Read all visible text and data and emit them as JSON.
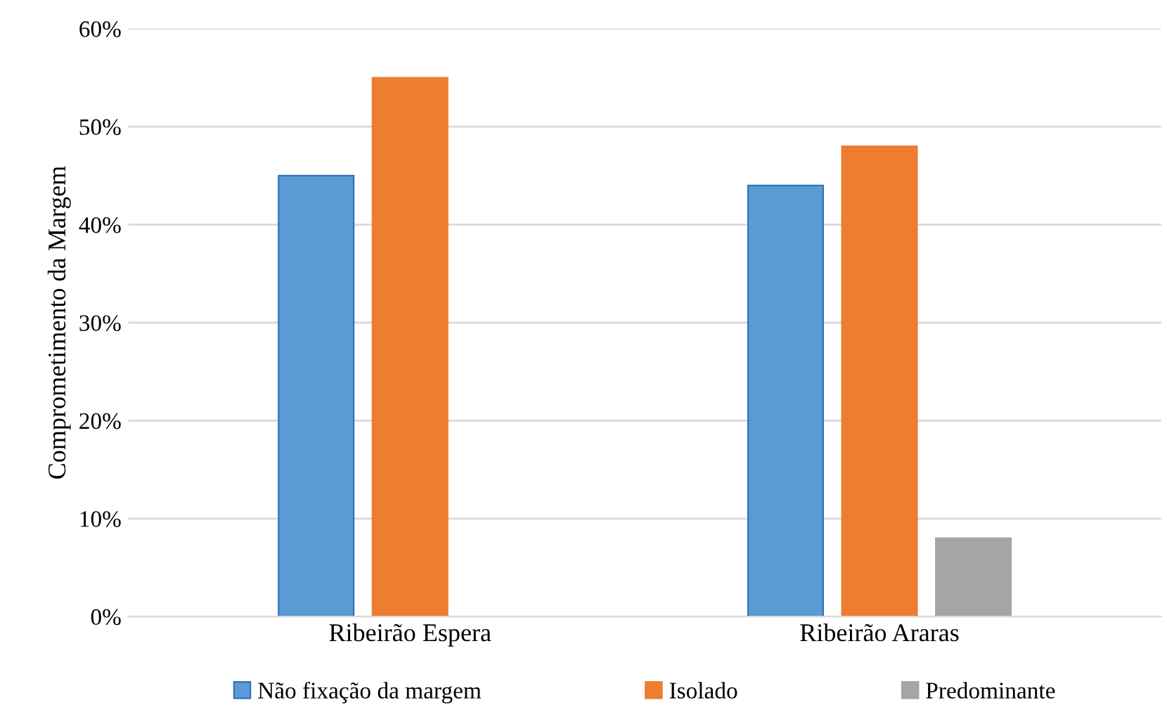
{
  "chart_data": {
    "type": "bar",
    "ylabel": "Comprometimento da Margem",
    "categories": [
      "Ribeirão Espera",
      "Ribeirão Araras"
    ],
    "series": [
      {
        "name": "Não fixação da margem",
        "color": "#5b9bd5",
        "values": [
          45,
          44
        ]
      },
      {
        "name": "Isolado",
        "color": "#ed7d31",
        "values": [
          55,
          48
        ]
      },
      {
        "name": "Predominante",
        "color": "#a5a5a5",
        "values": [
          null,
          8
        ]
      }
    ],
    "ylim": [
      0,
      60
    ],
    "yticks": [
      {
        "value": 0,
        "label": "0%"
      },
      {
        "value": 10,
        "label": "10%"
      },
      {
        "value": 20,
        "label": "20%"
      },
      {
        "value": 30,
        "label": "30%"
      },
      {
        "value": 40,
        "label": "40%"
      },
      {
        "value": 50,
        "label": "50%"
      },
      {
        "value": 60,
        "label": "60%"
      }
    ],
    "grid": "y",
    "legend": "bottom"
  }
}
